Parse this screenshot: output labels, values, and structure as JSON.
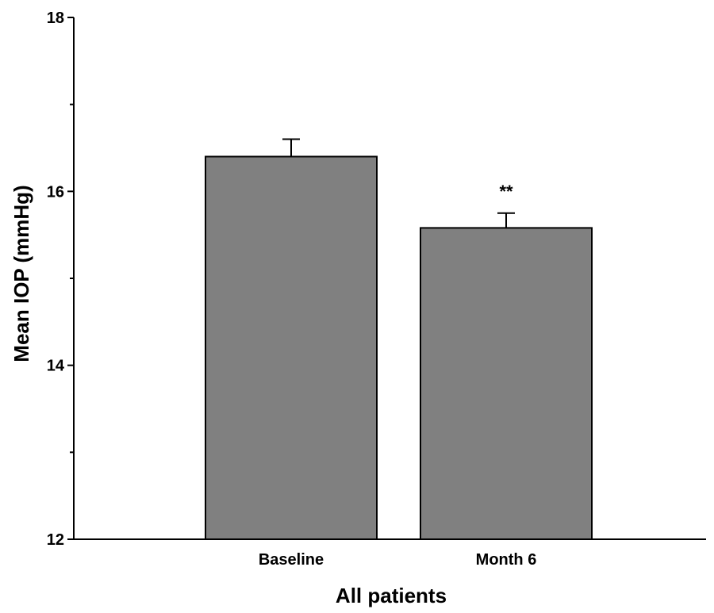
{
  "chart_data": {
    "type": "bar",
    "title": "",
    "xlabel": "All patients",
    "ylabel": "Mean IOP (mmHg)",
    "categories": [
      "Baseline",
      "Month 6"
    ],
    "values": [
      16.4,
      15.58
    ],
    "error_upper": [
      0.2,
      0.17
    ],
    "annotations": [
      "",
      "**"
    ],
    "ylim": [
      12,
      18
    ],
    "y_major_ticks": [
      12,
      14,
      16,
      18
    ],
    "y_minor_ticks": [
      13,
      15,
      17
    ],
    "y_tick_labels": [
      "12",
      "14",
      "16",
      "18"
    ],
    "bar_color": "#808080",
    "grid": false,
    "legend": "none"
  }
}
